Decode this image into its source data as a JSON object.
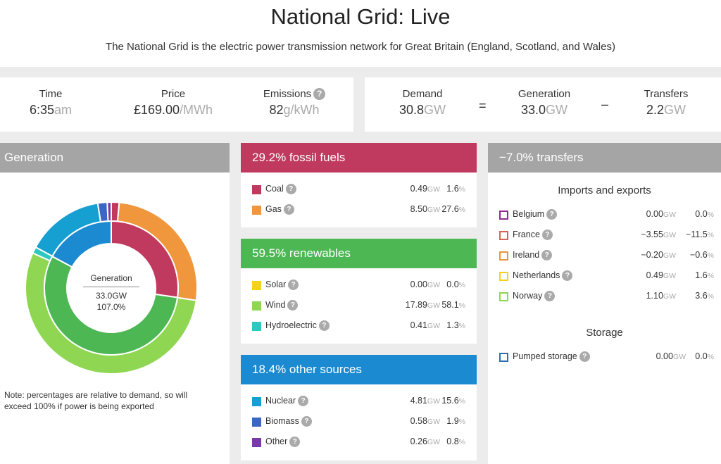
{
  "header": {
    "title": "National Grid: Live",
    "subtitle": "The National Grid is the electric power transmission network for Great Britain (England, Scotland, and Wales)"
  },
  "stats": {
    "time": {
      "label": "Time",
      "value": "6:35",
      "unit": "am"
    },
    "price": {
      "label": "Price",
      "value": "£169.00",
      "unit": "/MWh"
    },
    "emissions": {
      "label": "Emissions",
      "value": "82",
      "unit": "g/kWh"
    },
    "demand": {
      "label": "Demand",
      "value": "30.8",
      "unit": "GW"
    },
    "generation": {
      "label": "Generation",
      "value": "33.0",
      "unit": "GW"
    },
    "transfers": {
      "label": "Transfers",
      "value": "2.2",
      "unit": "GW"
    },
    "equals_symbol": "=",
    "minus_symbol": "–",
    "help_symbol": "?"
  },
  "generation_panel": {
    "title": "Generation",
    "center_label": "Generation",
    "center_value": "33.0GW",
    "center_pct": "107.0%",
    "note": "Note: percentages are relative to demand, so will exceed 100% if power is being exported"
  },
  "fossil": {
    "title": "29.2% fossil fuels",
    "color": "#c0395e",
    "rows": [
      {
        "name": "Coal",
        "gw": "0.49",
        "pct": "1.6",
        "color": "#c0395e"
      },
      {
        "name": "Gas",
        "gw": "8.50",
        "pct": "27.6",
        "color": "#f0963c"
      }
    ]
  },
  "renewables": {
    "title": "59.5% renewables",
    "color": "#4cb753",
    "rows": [
      {
        "name": "Solar",
        "gw": "0.00",
        "pct": "0.0",
        "color": "#f3d21c"
      },
      {
        "name": "Wind",
        "gw": "17.89",
        "pct": "58.1",
        "color": "#8fd653"
      },
      {
        "name": "Hydroelectric",
        "gw": "0.41",
        "pct": "1.3",
        "color": "#2ec8c0"
      }
    ]
  },
  "other": {
    "title": "18.4% other sources",
    "color": "#1b8ad1",
    "rows": [
      {
        "name": "Nuclear",
        "gw": "4.81",
        "pct": "15.6",
        "color": "#16a0d2"
      },
      {
        "name": "Biomass",
        "gw": "0.58",
        "pct": "1.9",
        "color": "#3b66c4"
      },
      {
        "name": "Other",
        "gw": "0.26",
        "pct": "0.8",
        "color": "#7a3ba6"
      }
    ]
  },
  "transfers_panel": {
    "title": "−7.0% transfers",
    "color": "#a5a5a5",
    "imports_title": "Imports and exports",
    "rows": [
      {
        "name": "Belgium",
        "gw": "0.00",
        "pct": "0.0",
        "color": "#8b2c8f"
      },
      {
        "name": "France",
        "gw": "−3.55",
        "pct": "−11.5",
        "color": "#d9625a"
      },
      {
        "name": "Ireland",
        "gw": "−0.20",
        "pct": "−0.6",
        "color": "#e8953c"
      },
      {
        "name": "Netherlands",
        "gw": "0.49",
        "pct": "1.6",
        "color": "#f3d21c"
      },
      {
        "name": "Norway",
        "gw": "1.10",
        "pct": "3.6",
        "color": "#8fd653"
      }
    ],
    "storage_title": "Storage",
    "storage_rows": [
      {
        "name": "Pumped storage",
        "gw": "0.00",
        "pct": "0.0",
        "color": "#2f6fb0"
      }
    ]
  },
  "units": {
    "gw": "GW",
    "pct": "%"
  },
  "donut": {
    "inner": [
      {
        "name": "Fossil fuels",
        "value": 29.2,
        "color": "#c0395e"
      },
      {
        "name": "Renewables",
        "value": 59.5,
        "color": "#4cb753"
      },
      {
        "name": "Other sources",
        "value": 18.4,
        "color": "#1b8ad1"
      }
    ],
    "outer": [
      {
        "name": "Coal",
        "value": 1.6,
        "color": "#c0395e"
      },
      {
        "name": "Gas",
        "value": 27.6,
        "color": "#f0963c"
      },
      {
        "name": "Solar",
        "value": 0.0,
        "color": "#f3d21c"
      },
      {
        "name": "Wind",
        "value": 58.1,
        "color": "#8fd653"
      },
      {
        "name": "Hydroelectric",
        "value": 1.3,
        "color": "#2ec8c0"
      },
      {
        "name": "Nuclear",
        "value": 15.6,
        "color": "#16a0d2"
      },
      {
        "name": "Biomass",
        "value": 1.9,
        "color": "#3b66c4"
      },
      {
        "name": "Other",
        "value": 0.8,
        "color": "#7a3ba6"
      }
    ]
  }
}
